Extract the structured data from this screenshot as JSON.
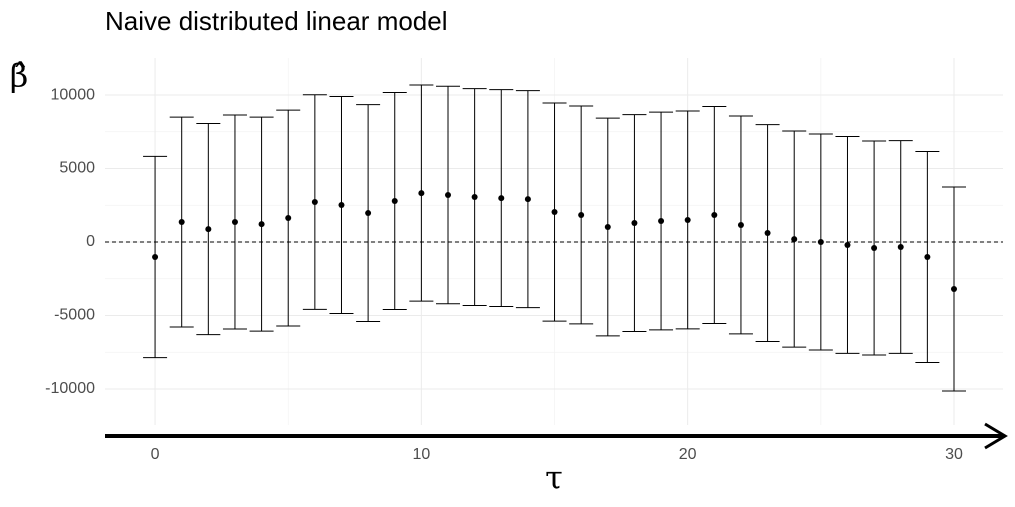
{
  "chart_data": {
    "type": "errorbar",
    "title": "Naive distributed linear model",
    "x_label": "τ",
    "y_label": "β̂",
    "x": [
      0,
      1,
      2,
      3,
      4,
      5,
      6,
      7,
      8,
      9,
      10,
      11,
      12,
      13,
      14,
      15,
      16,
      17,
      18,
      19,
      20,
      21,
      22,
      23,
      24,
      25,
      26,
      27,
      28,
      29,
      30
    ],
    "values": [
      -1020,
      1360,
      880,
      1360,
      1220,
      1630,
      2720,
      2520,
      1970,
      2790,
      3330,
      3200,
      3060,
      2990,
      2920,
      2040,
      1840,
      1020,
      1290,
      1430,
      1500,
      1840,
      1160,
      610,
      200,
      0,
      -200,
      -410,
      -340,
      -1020,
      -3200
    ],
    "errors": [
      6850,
      7140,
      7180,
      7280,
      7280,
      7340,
      7300,
      7380,
      7380,
      7380,
      7350,
      7400,
      7380,
      7380,
      7380,
      7420,
      7410,
      7410,
      7380,
      7410,
      7410,
      7380,
      7410,
      7380,
      7350,
      7350,
      7380,
      7280,
      7240,
      7180,
      6940
    ],
    "color": "#000000",
    "reference_line": 0,
    "xlim": [
      -1.88,
      31.84
    ],
    "ylim": [
      -12450,
      12520
    ],
    "xticks": [
      0,
      10,
      20,
      30
    ],
    "yticks": [
      -10000,
      -5000,
      0,
      5000,
      10000
    ],
    "grid": true
  }
}
